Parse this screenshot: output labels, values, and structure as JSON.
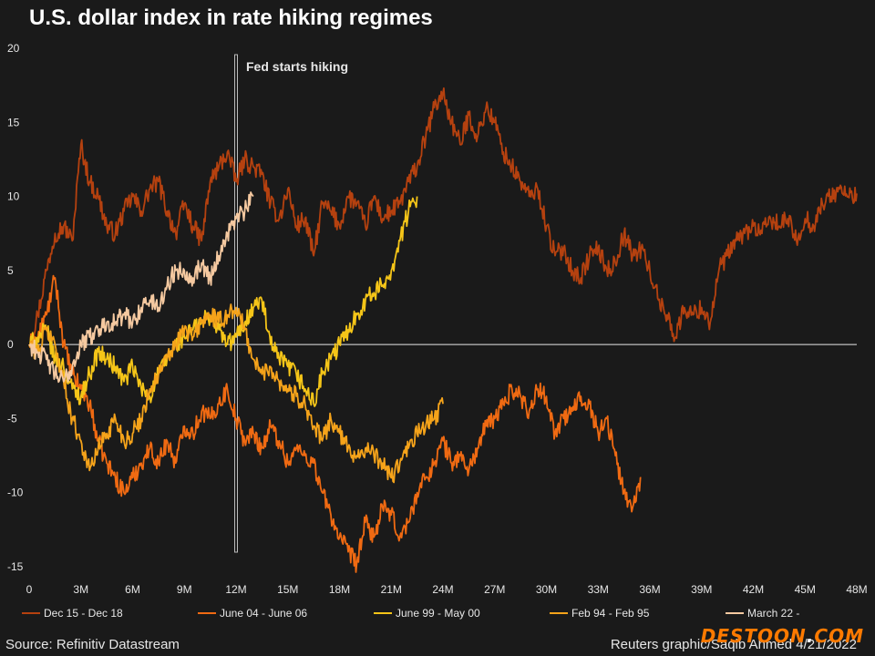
{
  "title": "U.S. dollar index in rate hiking regimes",
  "source": "Source: Refinitiv Datastream",
  "credit": "Reuters graphic/Saqib Ahmed 4/21/2022",
  "watermark": {
    "main": "DESTOON",
    "dot": ".",
    "suffix": "COM"
  },
  "chart_data": {
    "type": "line",
    "title": "U.S. dollar index in rate hiking regimes",
    "xlabel": "",
    "ylabel": "",
    "x_unit": "months",
    "xlim": [
      0,
      48
    ],
    "ylim": [
      -15,
      20
    ],
    "x_ticks": [
      0,
      3,
      6,
      9,
      12,
      15,
      18,
      21,
      24,
      27,
      30,
      33,
      36,
      39,
      42,
      45,
      48
    ],
    "x_tick_labels": [
      "0",
      "3M",
      "6M",
      "9M",
      "12M",
      "15M",
      "18M",
      "21M",
      "24M",
      "27M",
      "30M",
      "33M",
      "36M",
      "39M",
      "42M",
      "45M",
      "48M"
    ],
    "y_ticks": [
      -15,
      -10,
      -5,
      0,
      5,
      10,
      15,
      20
    ],
    "y_tick_labels": [
      "-15",
      "-10",
      "-5",
      "0",
      "5",
      "10",
      "15",
      "20"
    ],
    "annotation": {
      "text": "Fed starts hiking",
      "x": 12
    },
    "series": [
      {
        "name": "Dec 15 - Dec 18",
        "color": "#b5410f",
        "x": [
          0,
          0.5,
          1,
          1.5,
          2,
          2.5,
          3,
          3.5,
          4,
          4.5,
          5,
          5.5,
          6,
          6.5,
          7,
          7.5,
          8,
          8.5,
          9,
          9.5,
          10,
          10.5,
          11,
          11.5,
          12,
          12.5,
          13,
          13.5,
          14,
          14.5,
          15,
          15.5,
          16,
          16.5,
          17,
          17.5,
          18,
          18.5,
          19,
          19.5,
          20,
          20.5,
          21,
          21.5,
          22,
          22.5,
          23,
          23.5,
          24,
          24.5,
          25,
          25.5,
          26,
          26.5,
          27,
          27.5,
          28,
          28.5,
          29,
          29.5,
          30,
          30.5,
          31,
          31.5,
          32,
          32.5,
          33,
          33.5,
          34,
          34.5,
          35,
          35.5,
          36,
          36.5,
          37,
          37.5,
          38,
          38.5,
          39,
          39.5,
          40,
          40.5,
          41,
          41.5,
          42,
          42.5,
          43,
          43.5,
          44,
          44.5,
          45,
          45.5,
          46,
          46.5,
          47,
          47.5,
          48
        ],
        "values": [
          0,
          2,
          5,
          7.5,
          8,
          7,
          13.5,
          11,
          10,
          8,
          7.5,
          9,
          10,
          9,
          10.5,
          11,
          9,
          7.5,
          9.5,
          8,
          7,
          11,
          12,
          13,
          11,
          12.5,
          12,
          11.5,
          9.5,
          8.5,
          10.5,
          8,
          8.5,
          6,
          9.5,
          9,
          8,
          10,
          9.5,
          8,
          10,
          8.5,
          9,
          9.5,
          11,
          12,
          14,
          16,
          17,
          15,
          13.5,
          15.5,
          14,
          16,
          15,
          13,
          12,
          11,
          10,
          10.5,
          8,
          6,
          6.5,
          5,
          4.5,
          6,
          6.5,
          5,
          5.5,
          7.5,
          6,
          6.5,
          5,
          3,
          2,
          0.5,
          2.5,
          2,
          2.5,
          1.5,
          5,
          6,
          7,
          7.5,
          8,
          7.5,
          8.5,
          8,
          8.5,
          7,
          8.5,
          8,
          9.5,
          10,
          10.5,
          10,
          10.2
        ]
      },
      {
        "name": "June 04 - June 06",
        "color": "#f06a12",
        "x": [
          0,
          0.5,
          1,
          1.5,
          2,
          2.5,
          3,
          3.5,
          4,
          4.5,
          5,
          5.5,
          6,
          6.5,
          7,
          7.5,
          8,
          8.5,
          9,
          9.5,
          10,
          10.5,
          11,
          11.5,
          12,
          12.5,
          13,
          13.5,
          14,
          14.5,
          15,
          15.5,
          16,
          16.5,
          17,
          17.5,
          18,
          18.5,
          19,
          19.5,
          20,
          20.5,
          21,
          21.5,
          22,
          22.5,
          23,
          23.5,
          24,
          24.5,
          25,
          25.5,
          26,
          26.5,
          27,
          27.5,
          28,
          28.5,
          29,
          29.5,
          30,
          30.5,
          31,
          31.5,
          32,
          32.5,
          33,
          33.5,
          34,
          34.5,
          35,
          35.5
        ],
        "values": [
          0,
          0.5,
          2,
          4.5,
          0,
          -2,
          -3,
          -4,
          -6.5,
          -8,
          -9,
          -10,
          -9,
          -8,
          -7,
          -8,
          -6.5,
          -8,
          -5.5,
          -6,
          -4.5,
          -5,
          -4,
          -3,
          -5,
          -6.5,
          -6,
          -7,
          -5.5,
          -6.5,
          -8,
          -7,
          -7.5,
          -8,
          -10,
          -11.5,
          -13,
          -14,
          -14.8,
          -12,
          -13,
          -11,
          -11.5,
          -13,
          -12,
          -10,
          -9,
          -8,
          -6.5,
          -8,
          -7.5,
          -8.5,
          -7,
          -5.5,
          -5,
          -4,
          -3,
          -3.5,
          -4.5,
          -3,
          -3.5,
          -6,
          -5,
          -4.5,
          -3.5,
          -4,
          -6,
          -5,
          -7.5,
          -10,
          -11,
          -9
        ]
      },
      {
        "name": "June 99 - May 00",
        "color": "#f5c518",
        "x": [
          0,
          0.5,
          1,
          1.5,
          2,
          2.5,
          3,
          3.5,
          4,
          4.5,
          5,
          5.5,
          6,
          6.5,
          7,
          7.5,
          8,
          8.5,
          9,
          9.5,
          10,
          10.5,
          11,
          11.5,
          12,
          12.5,
          13,
          13.5,
          14,
          14.5,
          15,
          15.5,
          16,
          16.5,
          17,
          17.5,
          18,
          18.5,
          19,
          19.5,
          20,
          20.5,
          21,
          21.5,
          22,
          22.5
        ],
        "values": [
          0,
          0.5,
          1,
          -1,
          -1.5,
          -3,
          -3.5,
          -2,
          -0.5,
          -1,
          -1.5,
          -2.5,
          -1.5,
          -3,
          -3.5,
          -2,
          -1,
          0,
          0.5,
          1,
          1.5,
          2,
          1,
          0,
          0.5,
          1.5,
          2.5,
          3,
          0,
          -1,
          -1.5,
          -2,
          -3,
          -4,
          -2,
          -1,
          0,
          1,
          2,
          3,
          3.5,
          4,
          5,
          7,
          9,
          10
        ]
      },
      {
        "name": "Feb 94 - Feb 95",
        "color": "#f5a31a",
        "x": [
          0,
          0.5,
          1,
          1.5,
          2,
          2.5,
          3,
          3.5,
          4,
          4.5,
          5,
          5.5,
          6,
          6.5,
          7,
          7.5,
          8,
          8.5,
          9,
          9.5,
          10,
          10.5,
          11,
          11.5,
          12,
          12.5,
          13,
          13.5,
          14,
          14.5,
          15,
          15.5,
          16,
          16.5,
          17,
          17.5,
          18,
          18.5,
          19,
          19.5,
          20,
          20.5,
          21,
          21.5,
          22,
          22.5,
          23,
          23.5,
          24
        ],
        "values": [
          0,
          -0.5,
          1,
          0,
          -2.5,
          -5,
          -6.5,
          -8.5,
          -7,
          -6,
          -5,
          -6.5,
          -6,
          -5,
          -3,
          -2,
          -1,
          0,
          1,
          0.5,
          1.5,
          2,
          1.5,
          2,
          2.5,
          1,
          -1,
          -2,
          -1.5,
          -2.5,
          -3,
          -3.5,
          -4,
          -5.5,
          -6.5,
          -5,
          -6,
          -7,
          -7.5,
          -7,
          -7.5,
          -8,
          -9,
          -8,
          -7,
          -6,
          -5.5,
          -5,
          -4
        ]
      },
      {
        "name": "March 22 -",
        "color": "#f5c9a0",
        "x": [
          0,
          0.5,
          1,
          1.5,
          2,
          2.5,
          3,
          3.5,
          4,
          4.5,
          5,
          5.5,
          6,
          6.5,
          7,
          7.5,
          8,
          8.5,
          9,
          9.5,
          10,
          10.5,
          11,
          11.5,
          12,
          12.5,
          13
        ],
        "values": [
          0,
          -0.5,
          -1,
          -2,
          -2.5,
          -1.5,
          0,
          0.5,
          1,
          1.5,
          1.5,
          2,
          1.5,
          2.5,
          3,
          2.5,
          4,
          5,
          5,
          4.5,
          5.5,
          4.5,
          6,
          7.5,
          8.5,
          9,
          10
        ]
      }
    ]
  }
}
